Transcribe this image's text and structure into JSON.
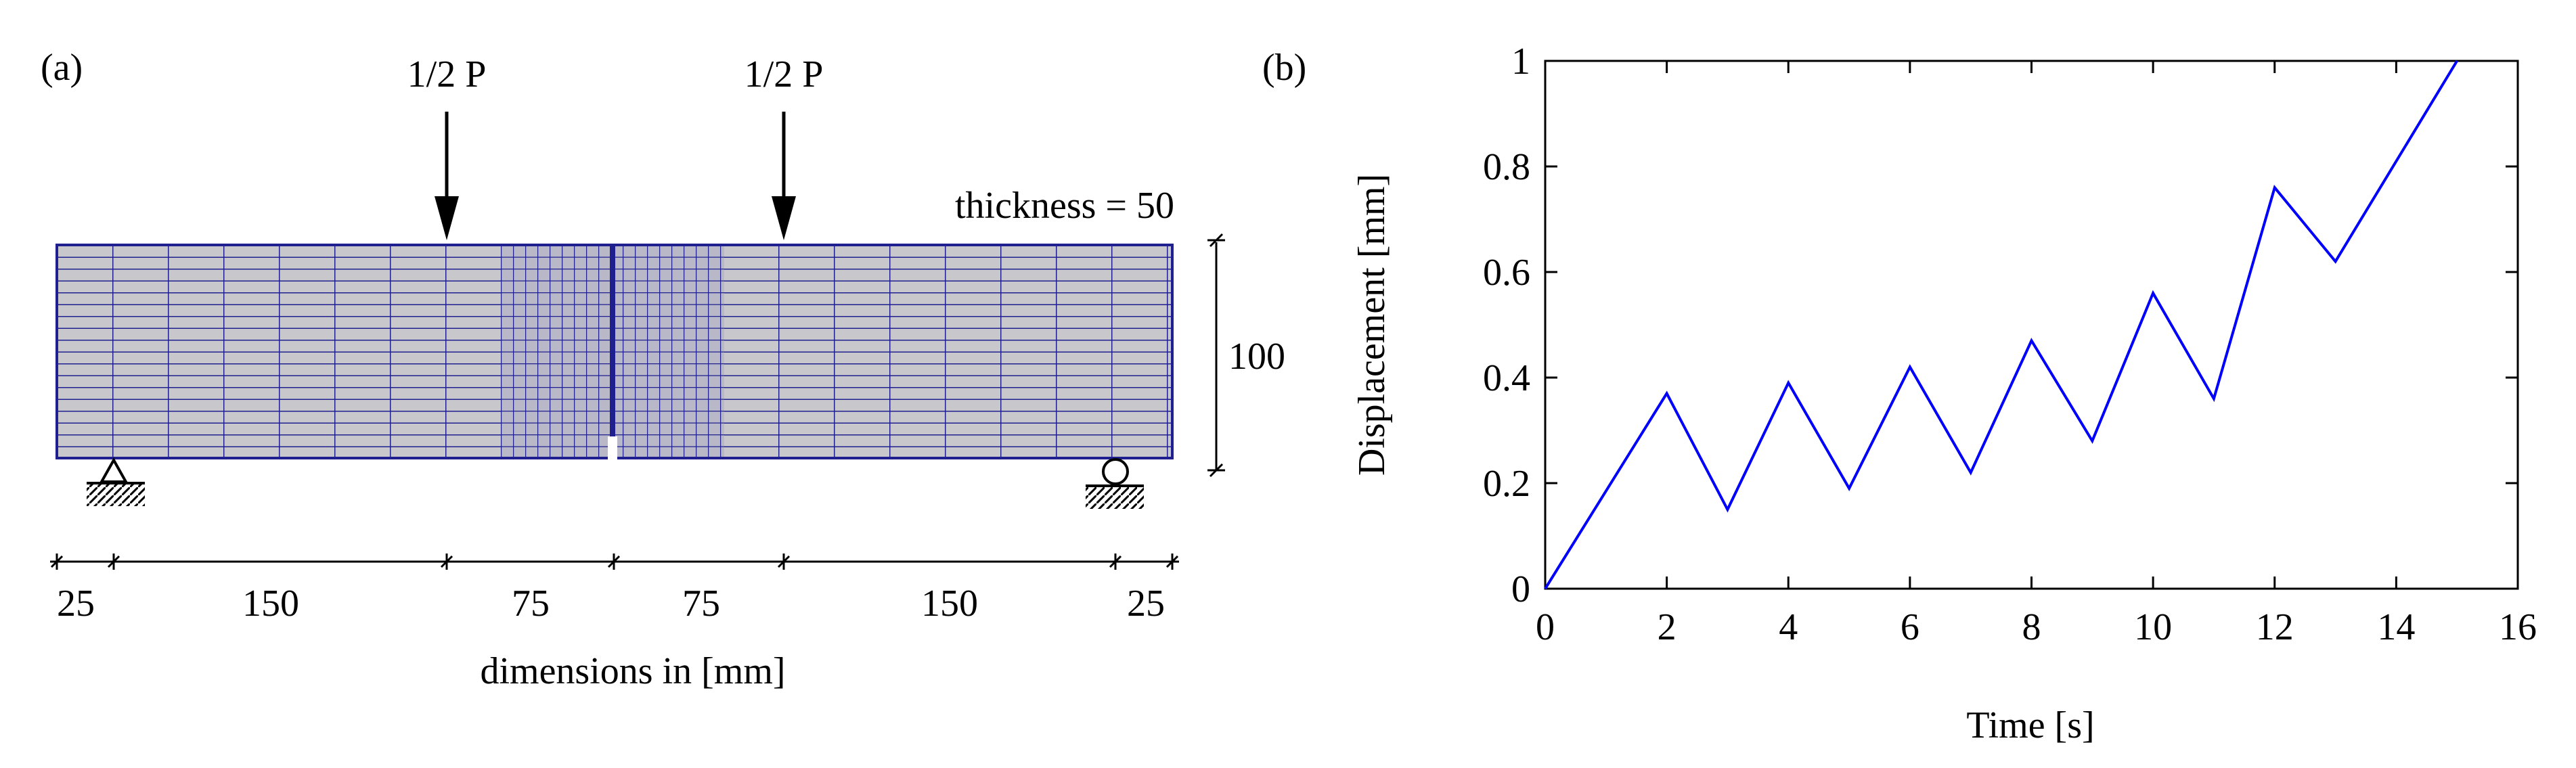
{
  "panel_a": {
    "label": "(a)",
    "load_left": "1/2 P",
    "load_right": "1/2 P",
    "thickness": "thickness = 50",
    "height": "100",
    "dims": [
      "25",
      "150",
      "75",
      "75",
      "150",
      "25"
    ],
    "dims_caption": "dimensions in [mm]"
  },
  "panel_b": {
    "label": "(b)"
  },
  "chart_data": {
    "type": "line",
    "title": "",
    "xlabel": "Time [s]",
    "ylabel": "Displacement [mm]",
    "xlim": [
      0,
      16
    ],
    "ylim": [
      0,
      1
    ],
    "xticks": [
      0,
      2,
      4,
      6,
      8,
      10,
      12,
      14,
      16
    ],
    "yticks": [
      0,
      0.2,
      0.4,
      0.6,
      0.8,
      1
    ],
    "xtick_labels": [
      "0",
      "2",
      "4",
      "6",
      "8",
      "10",
      "12",
      "14",
      "16"
    ],
    "ytick_labels": [
      "0",
      "0.2",
      "0.4",
      "0.6",
      "0.8",
      "1"
    ],
    "grid": false,
    "series": [
      {
        "name": "displacement",
        "color": "#0000ff",
        "x": [
          0,
          2,
          3,
          4,
          5,
          6,
          7,
          8,
          9,
          10,
          11,
          12,
          13,
          15
        ],
        "y": [
          0,
          0.37,
          0.15,
          0.39,
          0.19,
          0.42,
          0.22,
          0.47,
          0.28,
          0.56,
          0.36,
          0.76,
          0.62,
          1.0
        ]
      }
    ]
  }
}
